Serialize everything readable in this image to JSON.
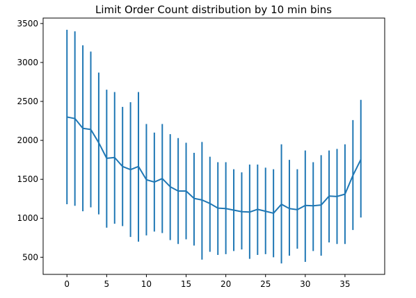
{
  "chart_data": {
    "type": "line",
    "title": "Limit Order Count distribution by 10 min bins",
    "xlabel": "",
    "ylabel": "",
    "xlim": [
      -3,
      40
    ],
    "ylim": [
      280,
      3570
    ],
    "x_ticks": [
      0,
      5,
      10,
      15,
      20,
      25,
      30,
      35
    ],
    "y_ticks": [
      500,
      1000,
      1500,
      2000,
      2500,
      3000,
      3500
    ],
    "grid": false,
    "legend": "none",
    "color": "#1f77b4",
    "series": [
      {
        "x": [
          0,
          1,
          2,
          3,
          4,
          5,
          6,
          7,
          8,
          9,
          10,
          11,
          12,
          13,
          14,
          15,
          16,
          17,
          18,
          19,
          20,
          21,
          22,
          23,
          24,
          25,
          26,
          27,
          28,
          29,
          30,
          31,
          32,
          33,
          34,
          35,
          36,
          37
        ],
        "y": [
          2300,
          2280,
          2155,
          2140,
          1970,
          1770,
          1780,
          1665,
          1625,
          1665,
          1495,
          1465,
          1510,
          1405,
          1350,
          1350,
          1255,
          1235,
          1190,
          1130,
          1125,
          1105,
          1085,
          1080,
          1115,
          1090,
          1065,
          1180,
          1125,
          1110,
          1165,
          1160,
          1170,
          1285,
          1280,
          1310,
          1550,
          1755
        ],
        "err_low": [
          1180,
          1160,
          1090,
          1140,
          1050,
          880,
          930,
          900,
          760,
          700,
          780,
          830,
          810,
          720,
          670,
          730,
          650,
          470,
          570,
          530,
          540,
          580,
          600,
          480,
          530,
          540,
          500,
          420,
          520,
          610,
          440,
          580,
          520,
          690,
          670,
          670,
          850,
          1010
        ],
        "err_high": [
          3420,
          3400,
          3220,
          3140,
          2870,
          2650,
          2620,
          2430,
          2490,
          2620,
          2210,
          2100,
          2210,
          2080,
          2030,
          1970,
          1840,
          1980,
          1790,
          1720,
          1720,
          1630,
          1590,
          1690,
          1690,
          1650,
          1630,
          1950,
          1750,
          1630,
          1870,
          1720,
          1810,
          1870,
          1890,
          1950,
          2260,
          2520
        ]
      }
    ]
  }
}
